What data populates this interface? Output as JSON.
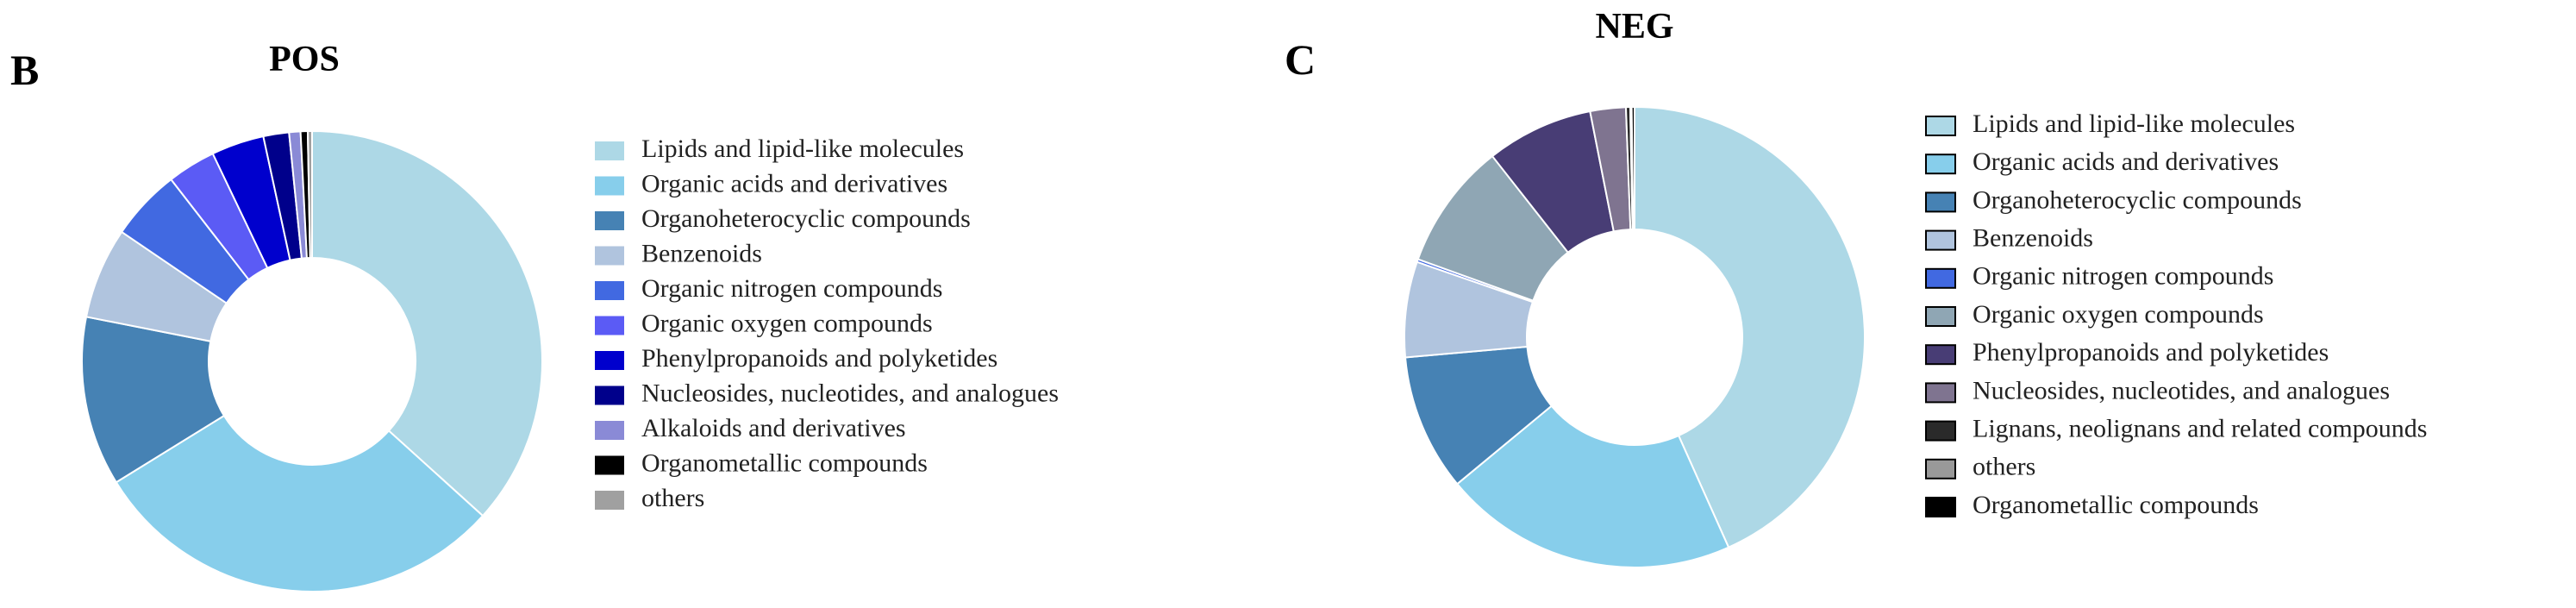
{
  "chart_data": [
    {
      "type": "donut",
      "panel_label": "B",
      "title": "POS",
      "categories": [
        "Lipids and lipid-like molecules",
        "Organic acids and derivatives",
        "Organoheterocyclic compounds",
        "Benzenoids",
        "Organic nitrogen compounds",
        "Organic oxygen compounds",
        "Phenylpropanoids and polyketides",
        "Nucleosides, nucleotides, and analogues",
        "Alkaloids and derivatives",
        "Organometallic compounds",
        "others"
      ],
      "values": [
        36.7,
        29.5,
        11.9,
        6.4,
        5.0,
        3.4,
        3.7,
        1.8,
        0.8,
        0.5,
        0.3
      ],
      "colors": [
        "#add8e6",
        "#87ceeb",
        "#4682b4",
        "#b0c4de",
        "#4169e1",
        "#5b5bf5",
        "#0000cd",
        "#00008b",
        "#8a8ad6",
        "#000000",
        "#a0a0a0"
      ]
    },
    {
      "type": "donut",
      "panel_label": "C",
      "title": "NEG",
      "categories": [
        "Lipids and lipid-like molecules",
        "Organic acids and derivatives",
        "Organoheterocyclic compounds",
        "Benzenoids",
        "Organic nitrogen compounds",
        "Organic oxygen compounds",
        "Phenylpropanoids and polyketides",
        "Nucleosides, nucleotides, and analogues",
        "Lignans, neolignans and related compounds",
        "others",
        "Organometallic compounds"
      ],
      "values": [
        43.3,
        20.7,
        9.6,
        6.7,
        0.2,
        8.9,
        7.5,
        2.5,
        0.3,
        0.1,
        0.2
      ],
      "colors": [
        "#add8e6",
        "#87ceeb",
        "#4682b4",
        "#b0c4de",
        "#4169e1",
        "#8fa6b4",
        "#483d75",
        "#7f7490",
        "#2a2a2a",
        "#999999",
        "#000000"
      ],
      "legend_border": true
    }
  ]
}
